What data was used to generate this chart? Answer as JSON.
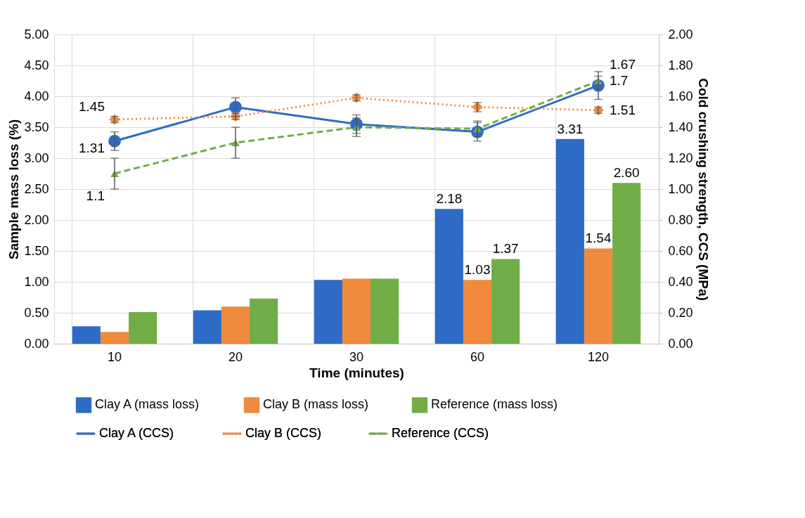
{
  "chart_data": {
    "type": "bar",
    "xlabel": "Time (minutes)",
    "ylabel": "Sample mass loss (%)",
    "y2label": "Cold crushing strength, CCS (MPa)",
    "categories": [
      "10",
      "20",
      "30",
      "60",
      "120"
    ],
    "series": [
      {
        "name": "Clay A (mass loss)",
        "color": "#2e6bc6",
        "values": [
          0.28,
          0.54,
          1.03,
          2.18,
          3.31
        ],
        "value_labels": [
          null,
          null,
          null,
          "2.18",
          "3.31"
        ]
      },
      {
        "name": "Clay B (mass loss)",
        "color": "#f08a3c",
        "values": [
          0.19,
          0.6,
          1.05,
          1.03,
          1.54
        ],
        "value_labels": [
          null,
          null,
          null,
          "1.03",
          "1.54"
        ]
      },
      {
        "name": "Reference (mass loss)",
        "color": "#70ad47",
        "values": [
          0.51,
          0.73,
          1.05,
          1.37,
          2.6
        ],
        "value_labels": [
          null,
          null,
          null,
          "1.37",
          "2.60"
        ]
      },
      {
        "name": "Clay A (CCS)",
        "type": "line",
        "axis": "y2",
        "color": "#2e6bc6",
        "marker": "circle",
        "line_style": "solid",
        "values": [
          1.31,
          1.53,
          1.42,
          1.37,
          1.67
        ],
        "errors": [
          0.06,
          0.06,
          0.06,
          0.06,
          0.09
        ],
        "value_labels": [
          "1.31",
          null,
          null,
          null,
          "1.67"
        ]
      },
      {
        "name": "Clay B (CCS)",
        "type": "line",
        "axis": "y2",
        "color": "#f08a3c",
        "marker": "diamond",
        "line_style": "dotted",
        "values": [
          1.45,
          1.47,
          1.59,
          1.53,
          1.51
        ],
        "errors": [
          0.02,
          0.02,
          0.02,
          0.03,
          0.02
        ],
        "value_labels": [
          "1.45",
          null,
          null,
          null,
          "1.51"
        ]
      },
      {
        "name": "Reference (CCS)",
        "type": "line",
        "axis": "y2",
        "color": "#70ad47",
        "marker": "triangle",
        "line_style": "dashed",
        "values": [
          1.1,
          1.3,
          1.4,
          1.39,
          1.7
        ],
        "errors": [
          0.1,
          0.1,
          0.06,
          0.05,
          0.03
        ],
        "value_labels": [
          "1.1",
          null,
          null,
          null,
          "1.7"
        ]
      }
    ],
    "ylim": [
      0,
      5
    ],
    "yticks": [
      {
        "value": 0,
        "label": "0.00"
      },
      {
        "value": 0.5,
        "label": "0.50"
      },
      {
        "value": 1,
        "label": "1.00"
      },
      {
        "value": 1.5,
        "label": "1.50"
      },
      {
        "value": 2,
        "label": "2.00"
      },
      {
        "value": 2.5,
        "label": "2.50"
      },
      {
        "value": 3,
        "label": "3.00"
      },
      {
        "value": 3.5,
        "label": "3.50"
      },
      {
        "value": 4,
        "label": "4.00"
      },
      {
        "value": 4.5,
        "label": "4.50"
      },
      {
        "value": 5,
        "label": "5.00"
      }
    ],
    "y2lim": [
      0,
      2
    ],
    "y2ticks": [
      {
        "value": 0,
        "label": "0.00"
      },
      {
        "value": 0.2,
        "label": "0.20"
      },
      {
        "value": 0.4,
        "label": "0.40"
      },
      {
        "value": 0.6,
        "label": "0.60"
      },
      {
        "value": 0.8,
        "label": "0.80"
      },
      {
        "value": 1,
        "label": "1.00"
      },
      {
        "value": 1.2,
        "label": "1.20"
      },
      {
        "value": 1.4,
        "label": "1.40"
      },
      {
        "value": 1.6,
        "label": "1.60"
      },
      {
        "value": 1.8,
        "label": "1.80"
      },
      {
        "value": 2,
        "label": "2.00"
      }
    ],
    "grid": true,
    "legend": "bottom"
  }
}
